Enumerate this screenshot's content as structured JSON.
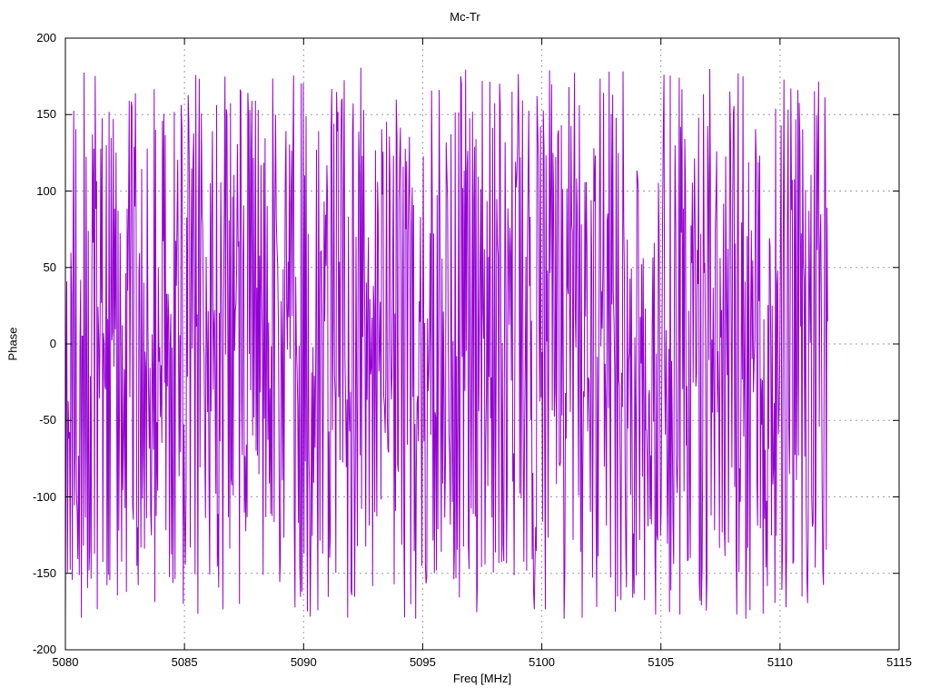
{
  "chart_data": {
    "type": "line",
    "title": "Mc-Tr",
    "xlabel": "Freq [MHz]",
    "ylabel": "Phase",
    "xlim": [
      5080,
      5115
    ],
    "ylim": [
      -200,
      200
    ],
    "x_ticks": [
      5080,
      5085,
      5090,
      5095,
      5100,
      5105,
      5110,
      5115
    ],
    "y_ticks": [
      200,
      150,
      100,
      50,
      0,
      -50,
      -100,
      -150,
      -200
    ],
    "grid": true,
    "grid_color": "#9e9e9e",
    "line_color": "#9400D3",
    "border_color": "#000000",
    "description": "Densely wrapped phase-noise trace; values oscillate across nearly the full -180..180 degree range, data spans 5080 to ~5112 MHz, region 5112-5115 MHz empty",
    "series": [
      {
        "name": "Phase",
        "style": "lines",
        "generator": {
          "kind": "uniform-random-wrapped-phase",
          "seed": 987654,
          "n": 1100,
          "x_start": 5080,
          "x_end": 5112,
          "y_min": -180,
          "y_max": 181
        }
      }
    ]
  }
}
